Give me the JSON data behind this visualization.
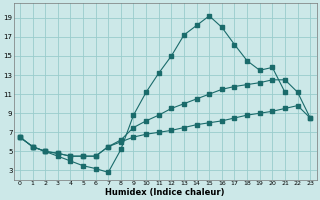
{
  "xlabel": "Humidex (Indice chaleur)",
  "bg_color": "#cce8e8",
  "grid_color": "#99cccc",
  "line_color": "#1a6b6b",
  "xlim": [
    -0.5,
    23.5
  ],
  "ylim": [
    2.0,
    20.5
  ],
  "xticks": [
    0,
    1,
    2,
    3,
    4,
    5,
    6,
    7,
    8,
    9,
    10,
    11,
    12,
    13,
    14,
    15,
    16,
    17,
    18,
    19,
    20,
    21,
    22,
    23
  ],
  "yticks": [
    3,
    5,
    7,
    9,
    11,
    13,
    15,
    17,
    19
  ],
  "line1_x": [
    0,
    1,
    2,
    3,
    4,
    5,
    6,
    7,
    8,
    9,
    10,
    11,
    12,
    13,
    14,
    15,
    16,
    17,
    18,
    19,
    20,
    21
  ],
  "line1_y": [
    6.5,
    5.5,
    5.0,
    4.5,
    4.0,
    3.5,
    3.2,
    2.8,
    5.2,
    8.8,
    11.2,
    13.2,
    15.0,
    17.2,
    18.2,
    19.2,
    18.0,
    16.2,
    14.5,
    13.5,
    13.8,
    11.2
  ],
  "line2_x": [
    0,
    1,
    2,
    3,
    4,
    5,
    6,
    7,
    8,
    9,
    10,
    11,
    12,
    13,
    14,
    15,
    16,
    17,
    18,
    19,
    20,
    21,
    22,
    23
  ],
  "line2_y": [
    6.5,
    5.5,
    5.0,
    4.8,
    4.5,
    4.5,
    4.5,
    5.5,
    6.2,
    7.5,
    8.2,
    8.8,
    9.5,
    10.0,
    10.5,
    11.0,
    11.5,
    11.8,
    12.0,
    12.2,
    12.5,
    12.5,
    11.2,
    8.5
  ],
  "line3_x": [
    0,
    1,
    2,
    3,
    4,
    5,
    6,
    7,
    8,
    9,
    10,
    11,
    12,
    13,
    14,
    15,
    16,
    17,
    18,
    19,
    20,
    21,
    22,
    23
  ],
  "line3_y": [
    6.5,
    5.5,
    5.0,
    4.8,
    4.5,
    4.5,
    4.5,
    5.5,
    6.0,
    6.5,
    6.8,
    7.0,
    7.2,
    7.5,
    7.8,
    8.0,
    8.2,
    8.5,
    8.8,
    9.0,
    9.2,
    9.5,
    9.8,
    8.5
  ]
}
